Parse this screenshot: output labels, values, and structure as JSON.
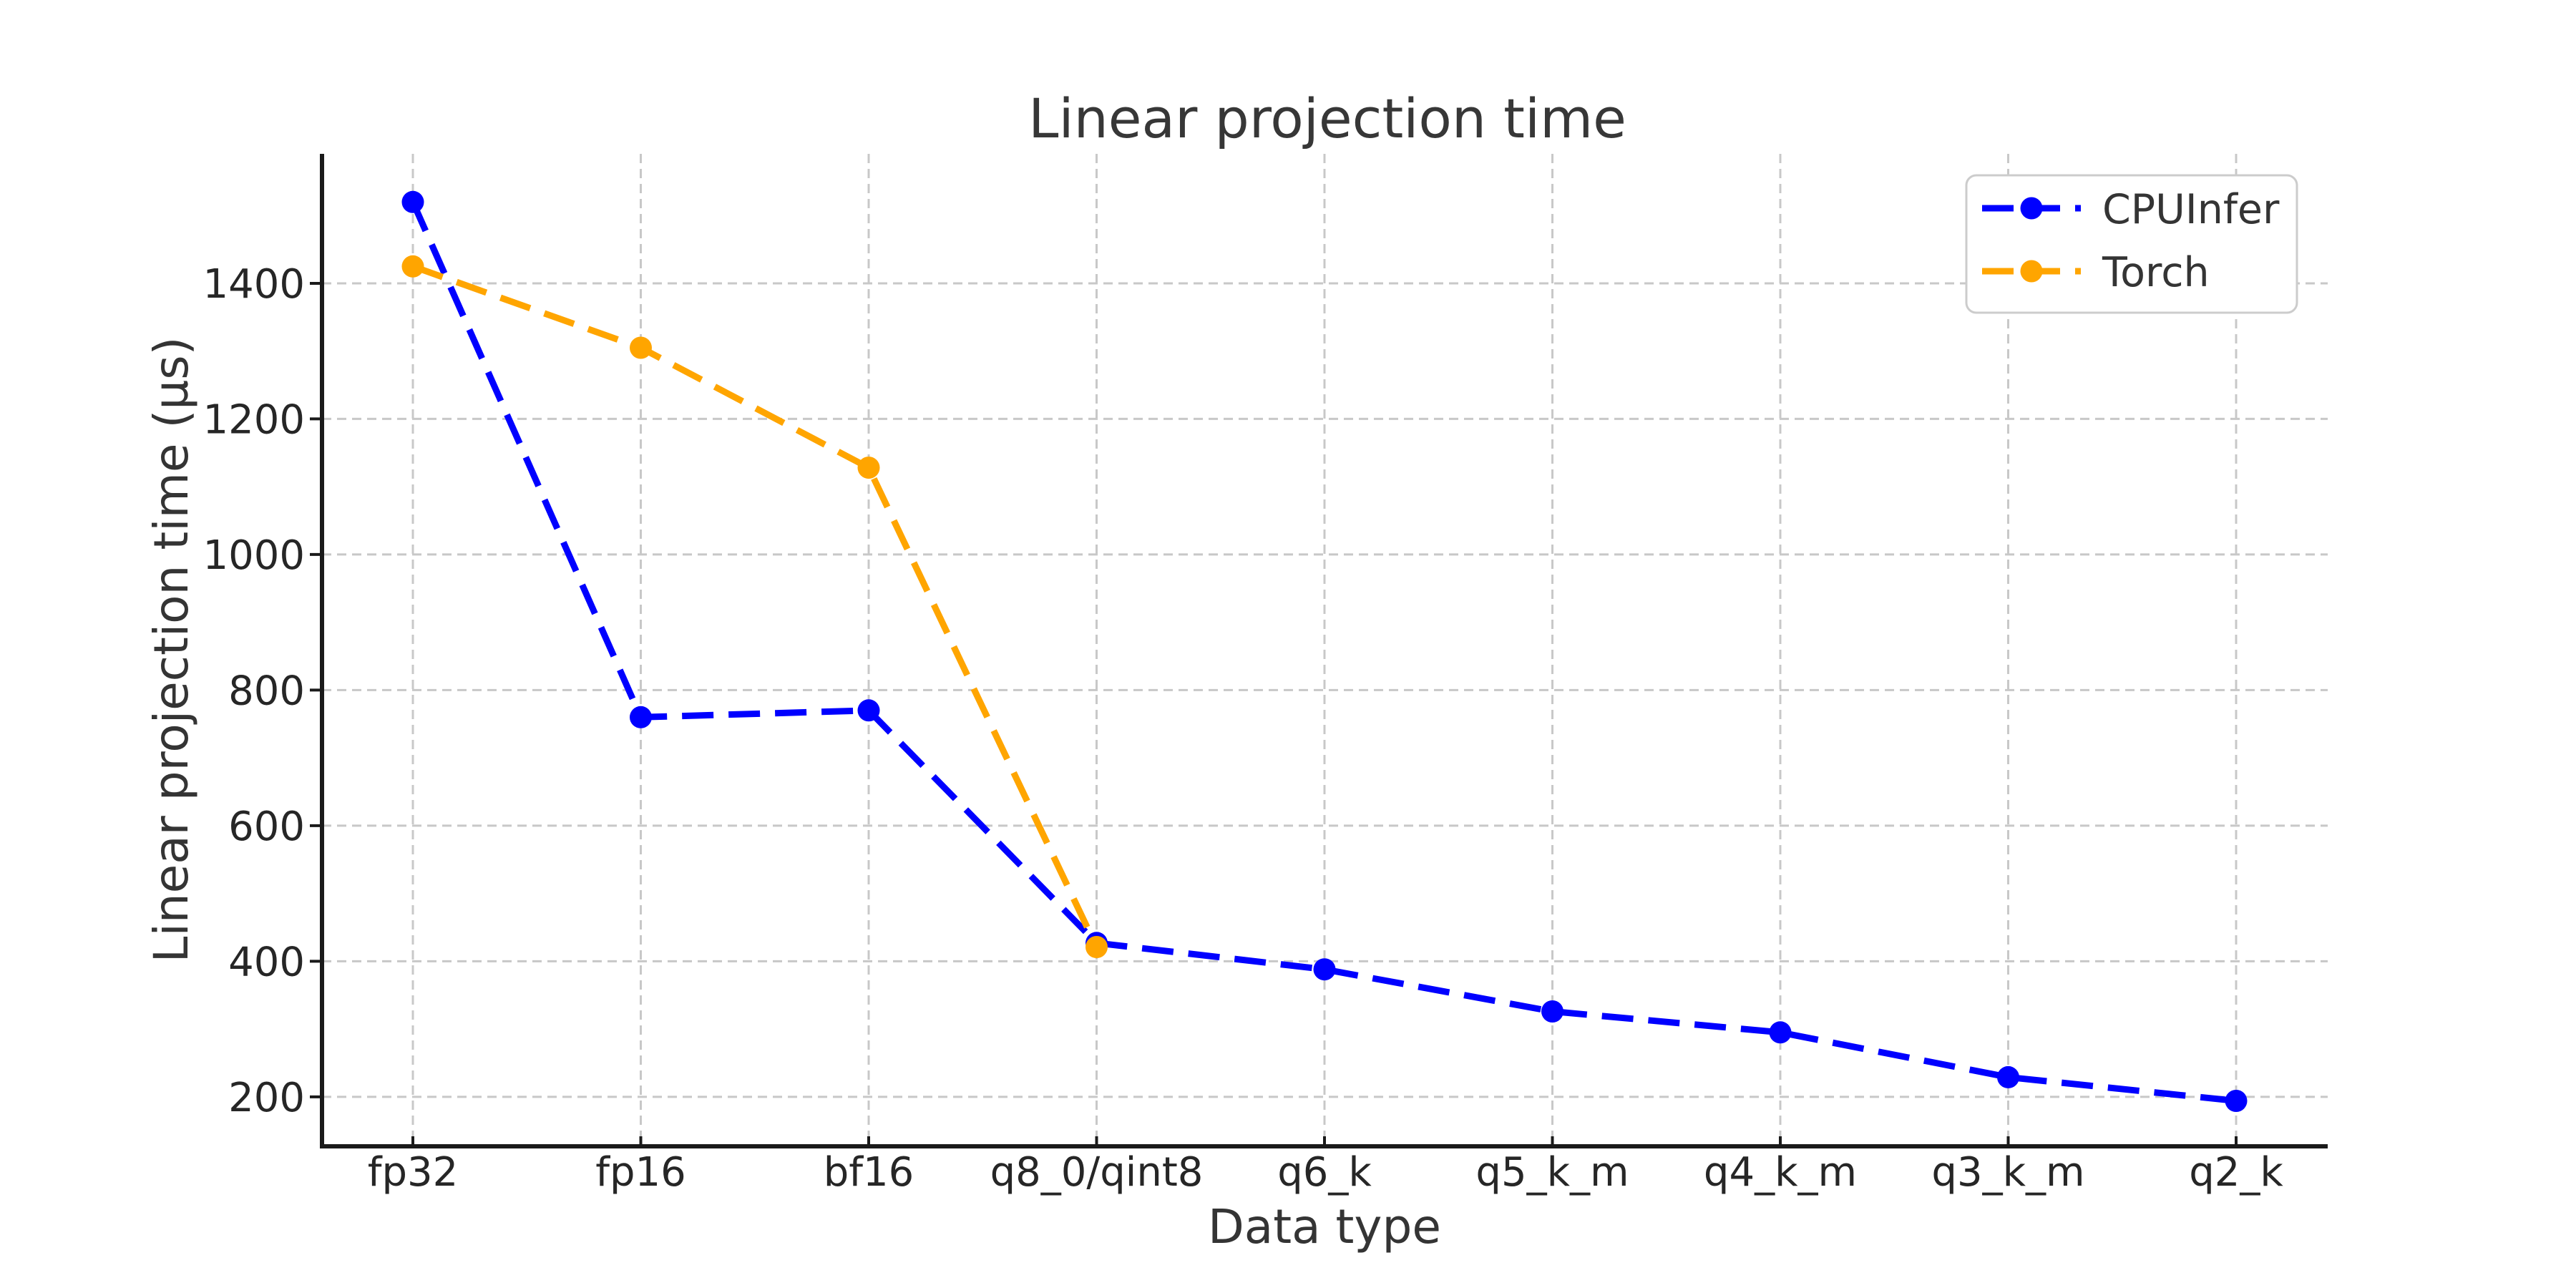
{
  "figure": {
    "background": "#ffffff"
  },
  "axes": {
    "x_tick_labels": [
      "fp32",
      "fp16",
      "bf16",
      "q8_0/qint8",
      "q6_k",
      "q5_k_m",
      "q4_k_m",
      "q3_k_m",
      "q2_k"
    ],
    "y_tick_labels": [
      "200",
      "400",
      "600",
      "800",
      "1000",
      "1200",
      "1400"
    ]
  },
  "legend": {
    "items": [
      {
        "label": "CPUInfer",
        "color": "#0000ff"
      },
      {
        "label": "Torch",
        "color": "#ffa500"
      }
    ]
  },
  "chart_data": {
    "type": "line",
    "title": "Linear projection time",
    "xlabel": "Data type",
    "ylabel": "Linear projection time (µs)",
    "categories": [
      "fp32",
      "fp16",
      "bf16",
      "q8_0/qint8",
      "q6_k",
      "q5_k_m",
      "q4_k_m",
      "q3_k_m",
      "q2_k"
    ],
    "series": [
      {
        "name": "CPUInfer",
        "color": "#0000ff",
        "line_style": "dashed",
        "marker": "circle",
        "values": [
          1520,
          760,
          770,
          427,
          388,
          326,
          295,
          229,
          194
        ]
      },
      {
        "name": "Torch",
        "color": "#ffa500",
        "line_style": "dashed",
        "marker": "circle",
        "values": [
          1425,
          1305,
          1128,
          421,
          null,
          null,
          null,
          null,
          null
        ]
      }
    ],
    "yticks": [
      200,
      400,
      600,
      800,
      1000,
      1200,
      1400
    ],
    "ylim": [
      127,
      1591
    ],
    "grid": true,
    "grid_style": "dashed",
    "legend_position": "upper right",
    "colors": {
      "grid": "#c8c8c8",
      "spine": "#1a1a1a",
      "tick_text": "#262626",
      "title_text": "#373737",
      "legend_border": "#cccccc",
      "legend_text": "#343434"
    }
  }
}
